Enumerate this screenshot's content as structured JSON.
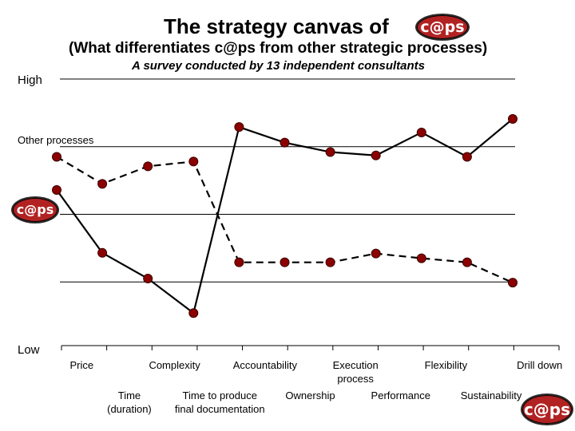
{
  "header": {
    "title": "The strategy canvas of",
    "logo_text": "c@ps",
    "subtitle": "(What differentiates c@ps from other strategic processes)",
    "survey": "A survey conducted by 13 independent consultants"
  },
  "chart_data": {
    "type": "line",
    "title": "The strategy canvas of c@ps",
    "ylabel_high": "High",
    "ylabel_low": "Low",
    "ylim": [
      0,
      4
    ],
    "grid": true,
    "categories": [
      "Price",
      "Time (duration)",
      "Complexity",
      "Time to produce final documentation",
      "Accountability",
      "Ownership",
      "Execution process",
      "Performance",
      "Flexibility",
      "Sustainability",
      "Drill down"
    ],
    "category_lines": [
      [
        "Price"
      ],
      [
        "Time",
        "(duration)"
      ],
      [
        "Complexity"
      ],
      [
        "Time to produce",
        "final documentation"
      ],
      [
        "Accountability"
      ],
      [
        "Ownership"
      ],
      [
        "Execution",
        "process"
      ],
      [
        "Performance"
      ],
      [
        "Flexibility"
      ],
      [
        "Sustainability"
      ],
      [
        "Drill down"
      ]
    ],
    "series": [
      {
        "name": "Other processes",
        "style": "dashed",
        "values": [
          2.85,
          2.45,
          2.71,
          2.78,
          1.29,
          1.29,
          1.29,
          1.42,
          1.35,
          1.29,
          0.99
        ]
      },
      {
        "name": "c@ps",
        "style": "solid",
        "values": [
          2.36,
          1.43,
          1.05,
          0.54,
          3.29,
          3.06,
          2.92,
          2.87,
          3.21,
          2.85,
          3.41
        ]
      }
    ],
    "colors": {
      "marker": "#8b0000",
      "line": "#000000",
      "logo_bg": "#b22222"
    }
  },
  "legend": {
    "other_label": "Other processes",
    "caps_logo_text": "c@ps"
  },
  "footer": {
    "logo_text": "c@ps"
  }
}
